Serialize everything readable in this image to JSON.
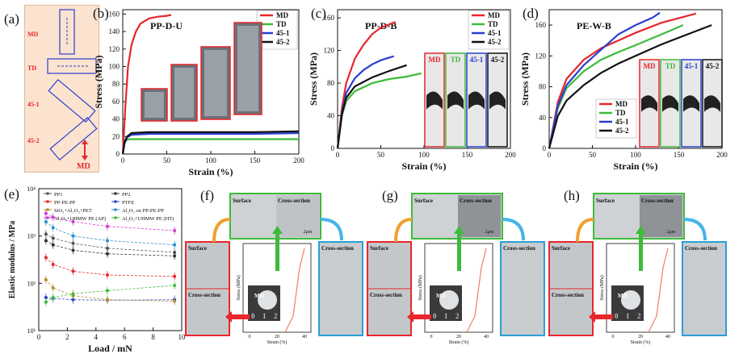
{
  "panel_a": {
    "label": "(a)",
    "labels": [
      "MD",
      "TD",
      "45-1",
      "45-2"
    ],
    "arrow_label": "MD"
  },
  "chart_data": [
    {
      "panel": "(b)",
      "type": "line",
      "title": "PP-D-U",
      "xlabel": "Strain (%)",
      "ylabel": "Stress (MPa)",
      "xlim": [
        0,
        200
      ],
      "ylim": [
        0,
        165
      ],
      "xticks": [
        0,
        50,
        100,
        150,
        200
      ],
      "yticks": [
        0,
        20,
        40,
        60,
        80,
        100,
        120,
        140,
        160
      ],
      "legend": "top-right",
      "series": [
        {
          "name": "MD",
          "color": "#e8262b",
          "points": [
            [
              0,
              0
            ],
            [
              3,
              55
            ],
            [
              6,
              100
            ],
            [
              10,
              125
            ],
            [
              15,
              140
            ],
            [
              20,
              149
            ],
            [
              30,
              155
            ],
            [
              40,
              157
            ],
            [
              50,
              158
            ],
            [
              55,
              159
            ]
          ]
        },
        {
          "name": "TD",
          "color": "#3dbb3a",
          "points": [
            [
              0,
              0
            ],
            [
              2,
              12
            ],
            [
              4,
              16
            ],
            [
              8,
              17
            ],
            [
              20,
              17
            ],
            [
              60,
              17
            ],
            [
              100,
              17
            ],
            [
              150,
              17
            ],
            [
              200,
              17
            ]
          ]
        },
        {
          "name": "45-1",
          "color": "#2a3ed1",
          "points": [
            [
              0,
              0
            ],
            [
              2,
              12
            ],
            [
              5,
              19
            ],
            [
              10,
              22
            ],
            [
              30,
              23
            ],
            [
              80,
              23
            ],
            [
              150,
              23
            ],
            [
              200,
              24
            ]
          ]
        },
        {
          "name": "45-2",
          "color": "#111111",
          "points": [
            [
              0,
              0
            ],
            [
              2,
              14
            ],
            [
              5,
              20
            ],
            [
              10,
              24
            ],
            [
              30,
              25
            ],
            [
              80,
              25
            ],
            [
              150,
              25
            ],
            [
              200,
              26
            ]
          ]
        }
      ]
    },
    {
      "panel": "(c)",
      "type": "line",
      "title": "PP-D-B",
      "xlabel": "Strain (%)",
      "ylabel": "Stress (MPa)",
      "xlim": [
        0,
        200
      ],
      "ylim": [
        0,
        170
      ],
      "xticks": [
        0,
        50,
        100,
        150,
        200
      ],
      "yticks": [
        0,
        40,
        80,
        120,
        160
      ],
      "legend": "top-right",
      "series": [
        {
          "name": "MD",
          "color": "#e8262b",
          "points": [
            [
              0,
              0
            ],
            [
              5,
              50
            ],
            [
              10,
              80
            ],
            [
              20,
              110
            ],
            [
              30,
              127
            ],
            [
              40,
              140
            ],
            [
              50,
              148
            ],
            [
              67,
              155
            ]
          ]
        },
        {
          "name": "TD",
          "color": "#3dbb3a",
          "points": [
            [
              0,
              0
            ],
            [
              5,
              40
            ],
            [
              10,
              58
            ],
            [
              20,
              70
            ],
            [
              40,
              80
            ],
            [
              60,
              85
            ],
            [
              80,
              88
            ],
            [
              97,
              92
            ]
          ]
        },
        {
          "name": "45-1",
          "color": "#2a3ed1",
          "points": [
            [
              0,
              0
            ],
            [
              5,
              45
            ],
            [
              10,
              68
            ],
            [
              20,
              86
            ],
            [
              30,
              96
            ],
            [
              40,
              103
            ],
            [
              50,
              108
            ],
            [
              65,
              113
            ]
          ]
        },
        {
          "name": "45-2",
          "color": "#111111",
          "points": [
            [
              0,
              0
            ],
            [
              5,
              42
            ],
            [
              10,
              62
            ],
            [
              20,
              76
            ],
            [
              40,
              87
            ],
            [
              60,
              95
            ],
            [
              80,
              102
            ]
          ]
        }
      ]
    },
    {
      "panel": "(d)",
      "type": "line",
      "title": "PE-W-B",
      "xlabel": "Strain (%)",
      "ylabel": "Stress (MPa)",
      "xlim": [
        0,
        200
      ],
      "ylim": [
        0,
        180
      ],
      "xticks": [
        0,
        50,
        100,
        150,
        200
      ],
      "yticks": [
        0,
        40,
        80,
        120,
        160
      ],
      "legend": "bottom-left",
      "series": [
        {
          "name": "MD",
          "color": "#e8262b",
          "points": [
            [
              0,
              0
            ],
            [
              10,
              60
            ],
            [
              20,
              90
            ],
            [
              40,
              115
            ],
            [
              60,
              130
            ],
            [
              80,
              140
            ],
            [
              100,
              150
            ],
            [
              130,
              163
            ],
            [
              170,
              175
            ]
          ]
        },
        {
          "name": "TD",
          "color": "#3dbb3a",
          "points": [
            [
              0,
              0
            ],
            [
              10,
              52
            ],
            [
              20,
              78
            ],
            [
              40,
              100
            ],
            [
              60,
              115
            ],
            [
              80,
              125
            ],
            [
              100,
              134
            ],
            [
              130,
              148
            ],
            [
              155,
              160
            ]
          ]
        },
        {
          "name": "45-1",
          "color": "#2a3ed1",
          "points": [
            [
              0,
              0
            ],
            [
              10,
              55
            ],
            [
              20,
              82
            ],
            [
              40,
              108
            ],
            [
              60,
              128
            ],
            [
              80,
              148
            ],
            [
              100,
              160
            ],
            [
              120,
              170
            ],
            [
              128,
              176
            ]
          ]
        },
        {
          "name": "45-2",
          "color": "#111111",
          "points": [
            [
              0,
              0
            ],
            [
              10,
              42
            ],
            [
              20,
              62
            ],
            [
              40,
              82
            ],
            [
              60,
              98
            ],
            [
              80,
              110
            ],
            [
              100,
              120
            ],
            [
              130,
              135
            ],
            [
              160,
              148
            ],
            [
              188,
              160
            ]
          ]
        }
      ]
    },
    {
      "panel": "(e)",
      "type": "scatter",
      "title": "",
      "xlabel": "Load / mN",
      "ylabel": "Elastic modulus / MPa",
      "xlim": [
        0,
        10
      ],
      "ylim_log": [
        10,
        10000
      ],
      "xticks": [
        0,
        2,
        4,
        6,
        8,
        10
      ],
      "yticks_labels": [
        "10¹",
        "10²",
        "10³",
        "10⁴"
      ],
      "legend": "top",
      "series": [
        {
          "name": "PP1",
          "color": "#555555",
          "x": [
            0.5,
            1,
            2.4,
            4.8,
            9.5
          ],
          "y": [
            1100,
            900,
            700,
            550,
            450
          ]
        },
        {
          "name": "PP2",
          "color": "#333333",
          "x": [
            0.5,
            1,
            2.4,
            4.8,
            9.5
          ],
          "y": [
            800,
            650,
            500,
            420,
            380
          ]
        },
        {
          "name": "PP-PE-PP",
          "color": "#e8262b",
          "x": [
            0.5,
            1,
            2.4,
            4.8,
            9.5
          ],
          "y": [
            350,
            250,
            180,
            150,
            140
          ]
        },
        {
          "name": "PTFE",
          "color": "#2a3ed1",
          "x": [
            0.5,
            1,
            2.4,
            4.8,
            9.5
          ],
          "y": [
            50,
            48,
            45,
            44,
            45
          ]
        },
        {
          "name": "SiO₂+Al₂O₃+PET",
          "color": "#b38f2a",
          "x": [
            0.5,
            1,
            2.4,
            4.8,
            9.5
          ],
          "y": [
            120,
            80,
            55,
            45,
            42
          ]
        },
        {
          "name": "Al₂O₃ on PP-PE-PP",
          "color": "#2a8fd1",
          "x": [
            0.5,
            1,
            2.4,
            4.8,
            9.5
          ],
          "y": [
            2000,
            1500,
            1000,
            800,
            650
          ]
        },
        {
          "name": "Al₂O₃+UHMW PE (AP)",
          "color": "#d13ad1",
          "x": [
            0.5,
            1,
            2.4,
            4.8,
            9.5
          ],
          "y": [
            3000,
            2500,
            2000,
            1600,
            1300
          ]
        },
        {
          "name": "Al₂O₃+UHMW PE (HT)",
          "color": "#3dbb3a",
          "x": [
            0.5,
            1,
            2.4,
            4.8,
            9.5
          ],
          "y": [
            40,
            50,
            60,
            70,
            90
          ]
        }
      ]
    }
  ],
  "inset_photos": {
    "c": [
      "MD",
      "TD",
      "45-1",
      "45-2"
    ],
    "d": [
      "MD",
      "TD",
      "45-1",
      "45-2"
    ]
  },
  "sem_panels": [
    {
      "label": "(f)",
      "surface": "Surface",
      "cross": "Cross-section",
      "scale": "2μm",
      "ylabel": "Stress (MPa)",
      "xlabel": "Strain (%)",
      "xticks": [
        "0",
        "20",
        "40"
      ],
      "md": "MD",
      "nums": [
        "0",
        "1",
        "2"
      ]
    },
    {
      "label": "(g)",
      "surface": "Surface",
      "cross": "Cross-section",
      "scale": "2μm",
      "ylabel": "Stress (MPa)",
      "xlabel": "Strain (%)",
      "xticks": [
        "0",
        "20",
        "40"
      ],
      "md": "MD",
      "nums": [
        "0",
        "1",
        "2"
      ]
    },
    {
      "label": "(h)",
      "surface": "Surface",
      "cross": "Cross-section",
      "scale": "2μm",
      "ylabel": "Stress (MPa)",
      "xlabel": "Strain (%)",
      "xticks": [
        "0",
        "20",
        "40"
      ],
      "md": "MD",
      "nums": [
        "0",
        "1",
        "2"
      ]
    }
  ]
}
